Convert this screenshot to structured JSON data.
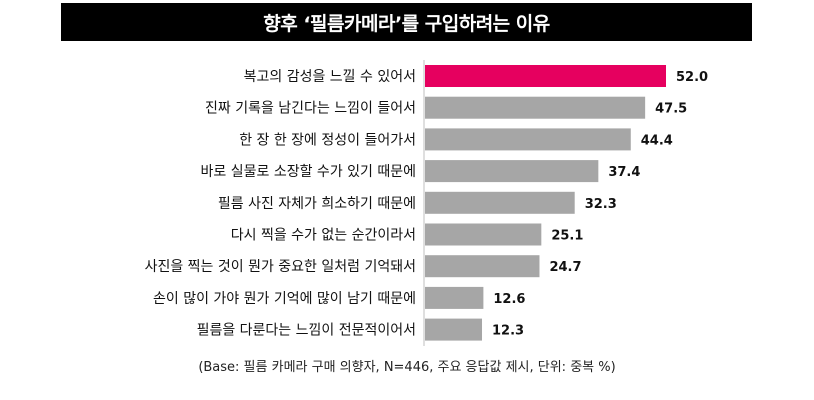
{
  "chart_data": {
    "type": "bar",
    "orientation": "horizontal",
    "title": "향후 ‘필름카메라’를 구입하려는 이유",
    "categories": [
      "복고의 감성을 느낄 수 있어서",
      "진짜 기록을 남긴다는 느낌이 들어서",
      "한 장 한 장에 정성이 들어가서",
      "바로 실물로 소장할 수가 있기 때문에",
      "필름 사진 자체가 희소하기 때문에",
      "다시 찍을 수가 없는 순간이라서",
      "사진을 찍는 것이 뭔가 중요한 일처럼 기억돼서",
      "손이 많이 가야 뭔가 기억에 많이 남기 때문에",
      "필름을 다룬다는 느낌이 전문적이어서"
    ],
    "values": [
      52.0,
      47.5,
      44.4,
      37.4,
      32.3,
      25.1,
      24.7,
      12.6,
      12.3
    ],
    "value_labels": [
      "52.0",
      "47.5",
      "44.4",
      "37.4",
      "32.3",
      "25.1",
      "24.7",
      "12.6",
      "12.3"
    ],
    "highlight_color": "#e6005f",
    "bar_color": "#a6a6a6",
    "xlim": [
      0,
      52
    ],
    "grid": false,
    "legend": "none"
  },
  "footnote": "(Base: 필름 카메라 구매 의향자, N=446, 주요 응답값 제시, 단위: 중복 %)"
}
